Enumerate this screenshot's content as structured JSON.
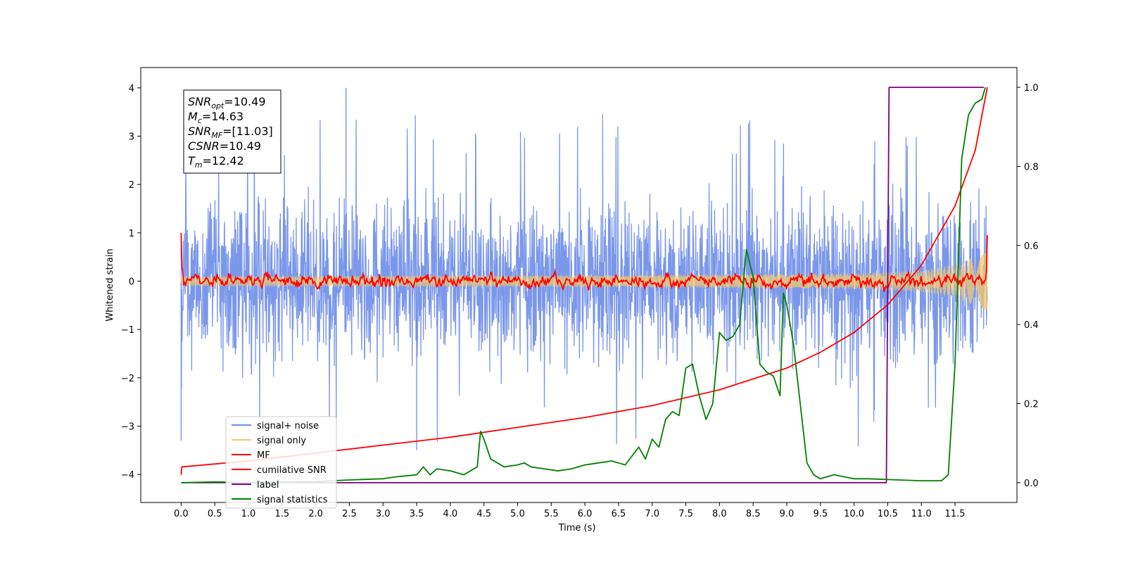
{
  "chart_data": {
    "type": "line",
    "xlabel": "Time (s)",
    "ylabel": "Whitened strain",
    "xlim": [
      -0.6,
      12.42
    ],
    "ylim": [
      -4.58,
      4.42
    ],
    "y2lim": [
      -0.05,
      1.05
    ],
    "x_ticks": [
      0.0,
      0.5,
      1.0,
      1.5,
      2.0,
      2.5,
      3.0,
      3.5,
      4.0,
      4.5,
      5.0,
      5.5,
      6.0,
      6.5,
      7.0,
      7.5,
      8.0,
      8.5,
      9.0,
      9.5,
      10.0,
      10.5,
      11.0,
      11.5
    ],
    "x_tick_labels": [
      "0.0",
      "0.5",
      "1.0",
      "1.5",
      "2.0",
      "2.5",
      "3.0",
      "3.5",
      "4.0",
      "4.5",
      "5.0",
      "5.5",
      "6.0",
      "6.5",
      "7.0",
      "7.5",
      "8.0",
      "8.5",
      "9.0",
      "9.5",
      "10.0",
      "10.5",
      "11.0",
      "11.5"
    ],
    "y_ticks": [
      -4,
      -3,
      -2,
      -1,
      0,
      1,
      2,
      3,
      4
    ],
    "y_tick_labels": [
      "−4",
      "−3",
      "−2",
      "−1",
      "0",
      "1",
      "2",
      "3",
      "4"
    ],
    "y2_ticks": [
      0.0,
      0.2,
      0.4,
      0.6,
      0.8,
      1.0
    ],
    "y2_tick_labels": [
      "0.0",
      "0.2",
      "0.4",
      "0.6",
      "0.8",
      "1.0"
    ],
    "grid": false,
    "legend_position": "lower-left",
    "legend": [
      "signal+ noise",
      "signal only",
      "MF",
      "cumilative SNR",
      "label",
      "signal statistics"
    ],
    "stats_box": {
      "snr_opt": {
        "main": "SNR",
        "sub": "opt",
        "value": "=10.49"
      },
      "mc": {
        "main": "M",
        "sub": "c",
        "value": "=14.63"
      },
      "snr_mf": {
        "main": "SNR",
        "sub": "MF",
        "value": "=[11.03]"
      },
      "csnr": {
        "main": "CSNR",
        "value": "=10.49"
      },
      "tm": {
        "main": "T",
        "sub": "m",
        "value": "=12.42"
      }
    },
    "series": [
      {
        "name": "signal+ noise",
        "axis": "left",
        "color": "#6f8ee8",
        "description": "dense noise, approximately within [-2.5, 2.5] with spikes up to 4.0 and down to -3.5",
        "typical_amplitude": 1.25,
        "max": 4.0,
        "min": -3.5
      },
      {
        "name": "signal only",
        "axis": "left",
        "color": "#f5c96b",
        "description": "chirp oscillation centered at 0 whose envelope grows with time",
        "envelope": {
          "x": [
            0.0,
            6.0,
            10.0,
            11.0,
            11.5,
            11.98
          ],
          "y": [
            0.1,
            0.12,
            0.16,
            0.22,
            0.35,
            0.6
          ]
        }
      },
      {
        "name": "MF",
        "axis": "left",
        "color": "#ff0000",
        "description": "noisy trace near 0 within about ±0.15, starting at 1.0 at t=0",
        "start_value": 1.0,
        "end_value": 0.95,
        "typical_amplitude": 0.08
      },
      {
        "name": "cumilative SNR",
        "axis": "right",
        "color": "#ff0000",
        "x": [
          0.0,
          0.01,
          1.0,
          2.0,
          3.0,
          4.0,
          5.0,
          6.0,
          7.0,
          8.0,
          9.0,
          9.5,
          10.0,
          10.5,
          11.0,
          11.5,
          11.8,
          11.98
        ],
        "y": [
          0.02,
          0.04,
          0.055,
          0.075,
          0.095,
          0.115,
          0.14,
          0.165,
          0.195,
          0.235,
          0.29,
          0.33,
          0.38,
          0.45,
          0.55,
          0.7,
          0.84,
          1.0
        ]
      },
      {
        "name": "label",
        "axis": "right",
        "color": "#800080",
        "x": [
          0.0,
          10.48,
          10.52,
          11.93
        ],
        "y": [
          0.0,
          0.0,
          1.0,
          1.0
        ]
      },
      {
        "name": "signal statistics",
        "axis": "right",
        "color": "#008000",
        "x": [
          0.0,
          0.5,
          1.0,
          1.5,
          2.0,
          2.5,
          3.0,
          3.2,
          3.5,
          3.6,
          3.7,
          3.8,
          4.0,
          4.2,
          4.4,
          4.45,
          4.5,
          4.6,
          4.8,
          5.0,
          5.1,
          5.2,
          5.4,
          5.6,
          5.8,
          6.0,
          6.2,
          6.4,
          6.5,
          6.6,
          6.8,
          6.9,
          7.0,
          7.1,
          7.2,
          7.3,
          7.4,
          7.5,
          7.6,
          7.7,
          7.8,
          7.9,
          8.0,
          8.1,
          8.2,
          8.3,
          8.4,
          8.5,
          8.6,
          8.7,
          8.8,
          8.9,
          8.95,
          9.0,
          9.1,
          9.2,
          9.3,
          9.4,
          9.5,
          9.7,
          10.0,
          10.2,
          10.5,
          11.0,
          11.3,
          11.4,
          11.5,
          11.6,
          11.7,
          11.8,
          11.9,
          11.95
        ],
        "y": [
          0.0,
          0.002,
          0.001,
          0.002,
          0.003,
          0.007,
          0.01,
          0.015,
          0.02,
          0.04,
          0.02,
          0.035,
          0.03,
          0.02,
          0.04,
          0.13,
          0.11,
          0.06,
          0.04,
          0.045,
          0.05,
          0.04,
          0.035,
          0.03,
          0.035,
          0.045,
          0.05,
          0.055,
          0.05,
          0.045,
          0.09,
          0.06,
          0.11,
          0.09,
          0.16,
          0.18,
          0.17,
          0.29,
          0.3,
          0.22,
          0.16,
          0.2,
          0.38,
          0.36,
          0.37,
          0.4,
          0.59,
          0.52,
          0.3,
          0.28,
          0.27,
          0.22,
          0.48,
          0.45,
          0.35,
          0.2,
          0.05,
          0.02,
          0.01,
          0.02,
          0.01,
          0.01,
          0.008,
          0.005,
          0.005,
          0.02,
          0.3,
          0.82,
          0.93,
          0.96,
          0.97,
          1.0
        ]
      }
    ]
  }
}
